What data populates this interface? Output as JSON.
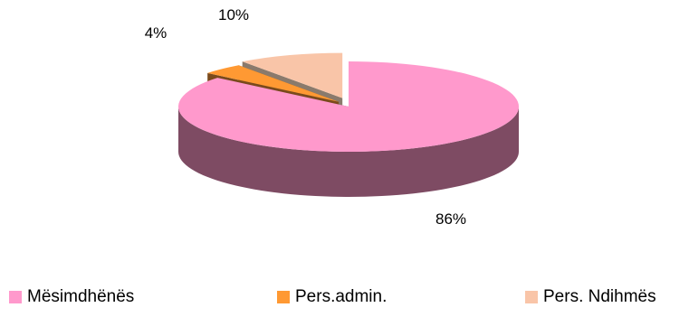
{
  "chart_data": {
    "type": "pie",
    "style": "3d-exploded",
    "categories": [
      "Mësimdhënës",
      "Pers.admin.",
      "Pers. Ndihmës"
    ],
    "values": [
      86,
      4,
      10
    ],
    "data_labels": [
      "86%",
      "4%",
      "10%"
    ],
    "colors": {
      "top": [
        "#ff99cc",
        "#ff9933",
        "#f9c5a8"
      ],
      "side": [
        "#7e4b63",
        "#7a4a1c",
        "#8a7a6c"
      ]
    },
    "start_angle_deg": 90,
    "direction": "clockwise",
    "legend_position": "bottom",
    "title": ""
  }
}
